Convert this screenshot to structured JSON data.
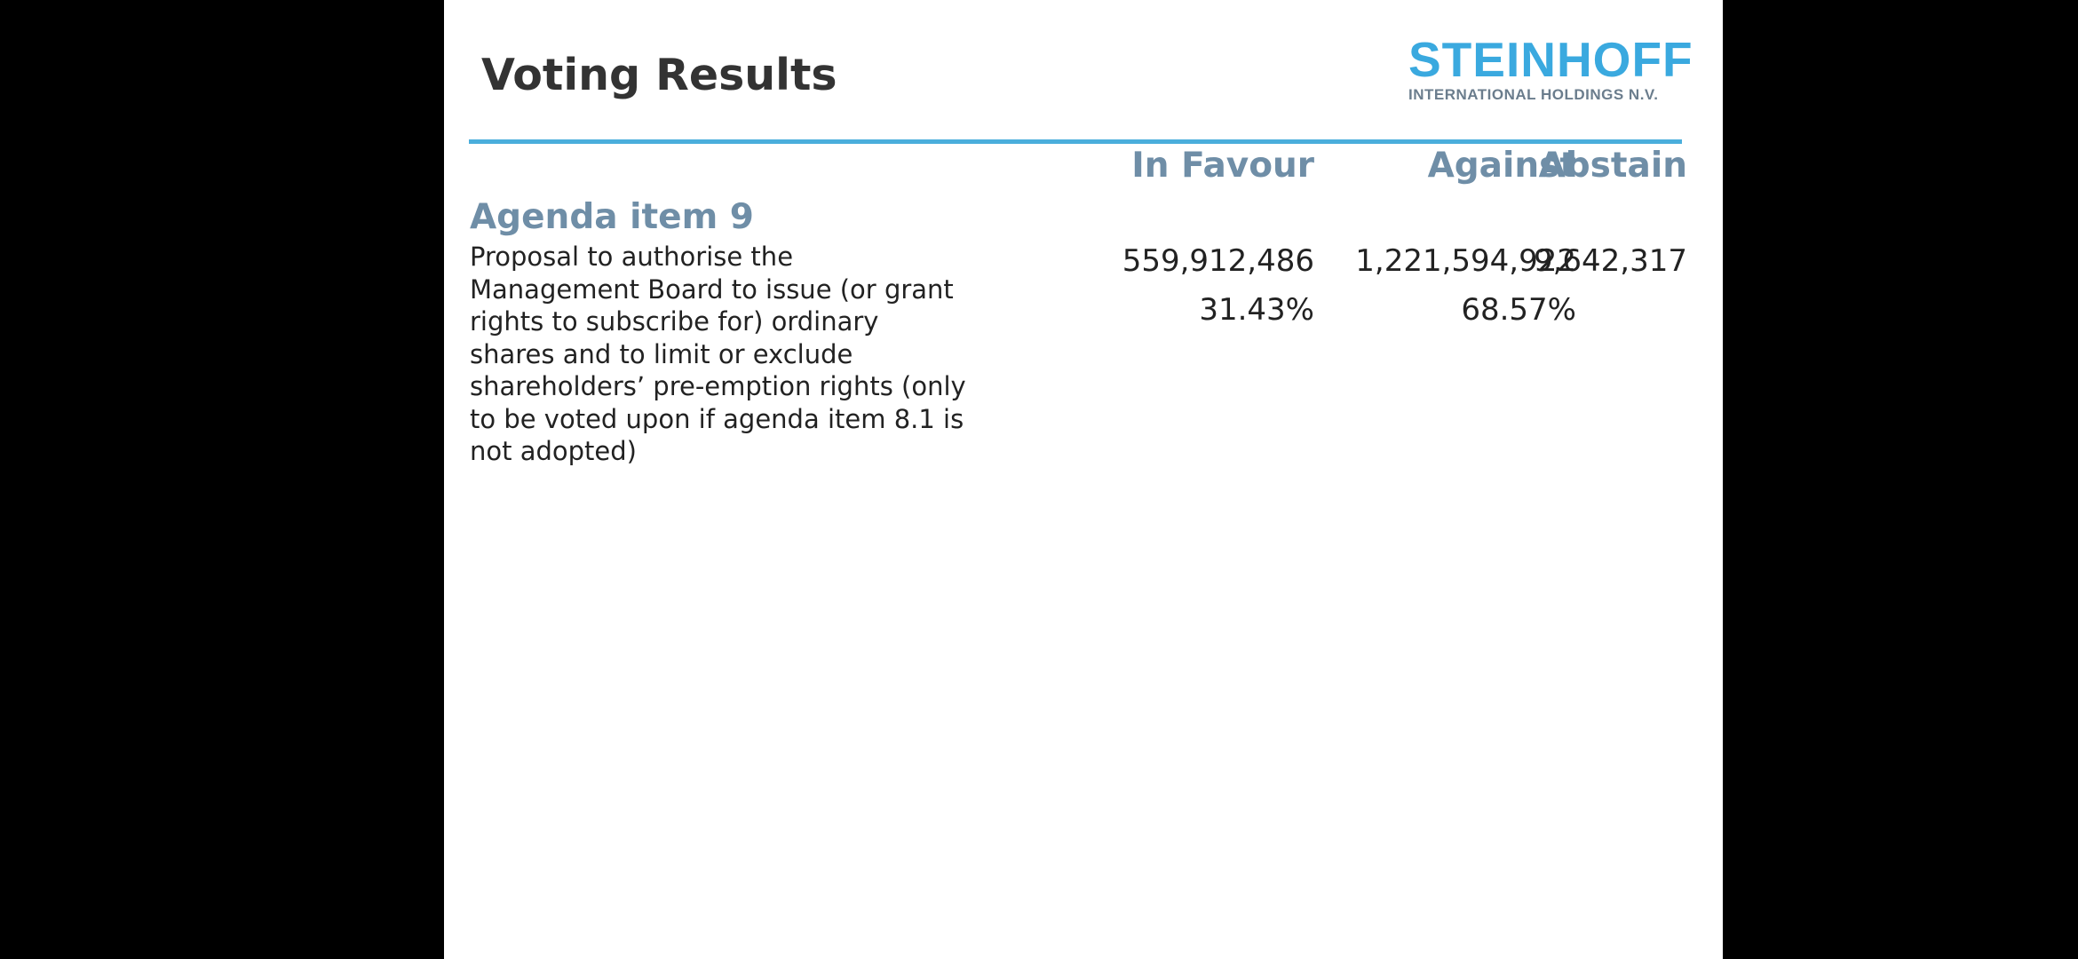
{
  "slide": {
    "title": "Voting Results"
  },
  "logo": {
    "brand": "STEINHOFF",
    "subtitle": "INTERNATIONAL HOLDINGS N.V.",
    "colors": {
      "brand": "#3aa9df",
      "subtitle": "#6b7d8d"
    }
  },
  "table": {
    "columns": [
      "In Favour",
      "Against",
      "Abstain"
    ],
    "item": {
      "title": "Agenda item 9",
      "description": "Proposal to authorise the Management Board to issue (or grant rights to subscribe for) ordinary shares and to limit or exclude shareholders’ pre-emption rights (only to be voted upon if agenda item 8.1 is not adopted)",
      "votes": [
        "559,912,486",
        "1,221,594,922",
        "9,642,317"
      ],
      "percentages": [
        "31.43%",
        "68.57%"
      ]
    }
  },
  "colors": {
    "rule": "#4aaedc",
    "heading": "#6f8ea7",
    "title": "#333333"
  }
}
